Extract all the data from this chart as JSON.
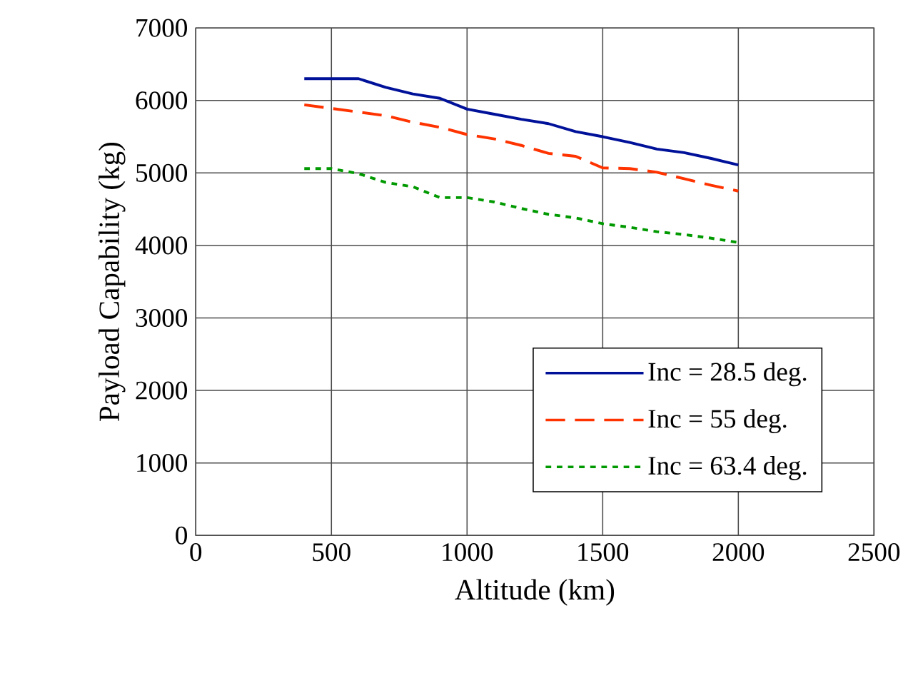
{
  "chart_data": {
    "type": "line",
    "xlabel": "Altitude (km)",
    "ylabel": "Payload Capability (kg)",
    "xlim": [
      0,
      2500
    ],
    "xticks": [
      0,
      500,
      1000,
      1500,
      2000,
      2500
    ],
    "ylim": [
      0,
      7000
    ],
    "yticks": [
      0,
      1000,
      2000,
      3000,
      4000,
      5000,
      6000,
      7000
    ],
    "grid": true,
    "legend": "bottom right",
    "marker": "none",
    "x": [
      400,
      500,
      600,
      700,
      800,
      900,
      1000,
      1100,
      1200,
      1300,
      1400,
      1500,
      1600,
      1700,
      1800,
      1900,
      2000
    ],
    "series": [
      {
        "name": "Inc = 28.5 deg.",
        "color": "#001199",
        "line_style": "solid",
        "values": [
          6300,
          6300,
          6300,
          6180,
          6090,
          6030,
          5880,
          5810,
          5740,
          5680,
          5570,
          5500,
          5420,
          5330,
          5280,
          5200,
          5110
        ]
      },
      {
        "name": "Inc = 55 deg.",
        "color": "#ff3300",
        "line_style": "dashed",
        "values": [
          5940,
          5890,
          5840,
          5790,
          5700,
          5630,
          5530,
          5470,
          5380,
          5270,
          5230,
          5070,
          5060,
          5010,
          4920,
          4830,
          4750
        ]
      },
      {
        "name": "Inc = 63.4 deg.",
        "color": "#009900",
        "line_style": "dotted",
        "values": [
          5060,
          5060,
          4990,
          4870,
          4810,
          4660,
          4660,
          4600,
          4510,
          4430,
          4380,
          4300,
          4250,
          4190,
          4150,
          4100,
          4040
        ]
      }
    ]
  }
}
